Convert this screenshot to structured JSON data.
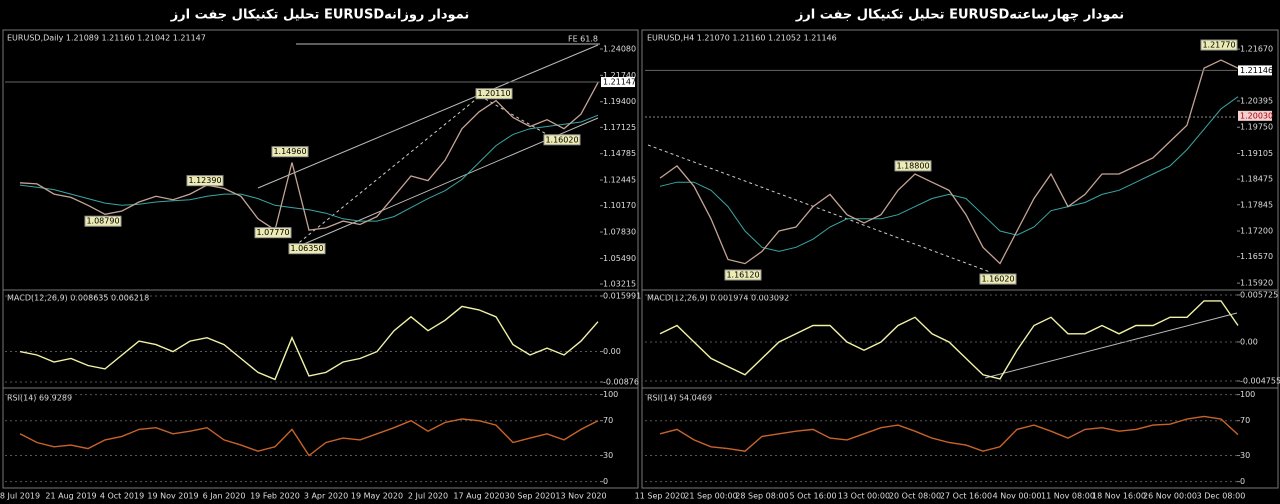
{
  "chart_data": [
    {
      "type": "line",
      "title": "تحلیل تکنیکال جفت ارز  EURUSDنمودار روزانه",
      "categories": [
        "8 Jul 2019",
        null,
        null,
        "21 Aug 2019",
        null,
        null,
        "4 Oct 2019",
        null,
        null,
        "19 Nov 2019",
        null,
        null,
        "6 Jan 2020",
        null,
        null,
        "19 Feb 2020",
        null,
        null,
        "3 Apr 2020",
        null,
        null,
        "19 May 2020",
        null,
        null,
        "2 Jul 2020",
        null,
        null,
        "17 Aug 2020",
        null,
        null,
        "30 Sep 2020",
        null,
        null,
        "13 Nov 2020",
        null
      ],
      "price": {
        "info": "EURUSD,Daily  1.21089 1.21160 1.21042 1.21147",
        "fe_label": "FE 61.8",
        "ylim": [
          1.0286,
          1.2559
        ],
        "yticks": [
          {
            "value": 1.2408,
            "label": "1.24080"
          },
          {
            "value": 1.2174,
            "label": "1.21740"
          },
          {
            "value": 1.194,
            "label": "1.19400"
          },
          1.17125,
          1.14785,
          1.12445,
          {
            "value": 1.1017,
            "label": "1.10170"
          },
          {
            "value": 1.0783,
            "label": "1.07830"
          },
          {
            "value": 1.0549,
            "label": "1.05490"
          },
          1.03215
        ],
        "current": 1.21147,
        "levels": [],
        "color": "#c4a494",
        "values": [
          1.122,
          1.121,
          1.112,
          1.109,
          1.102,
          1.094,
          1.097,
          1.105,
          1.11,
          1.107,
          1.112,
          1.12,
          1.117,
          1.11,
          1.09,
          1.08,
          1.14,
          1.08,
          1.082,
          1.088,
          1.085,
          1.092,
          1.11,
          1.128,
          1.124,
          1.142,
          1.17,
          1.185,
          1.195,
          1.18,
          1.172,
          1.178,
          1.17,
          1.183,
          1.211
        ],
        "ma": {
          "color": "#3aa6a6",
          "values": [
            1.12,
            1.118,
            1.116,
            1.112,
            1.108,
            1.104,
            1.102,
            1.103,
            1.105,
            1.106,
            1.107,
            1.11,
            1.112,
            1.112,
            1.108,
            1.102,
            1.1,
            1.098,
            1.095,
            1.09,
            1.088,
            1.088,
            1.092,
            1.1,
            1.108,
            1.115,
            1.125,
            1.14,
            1.155,
            1.165,
            1.17,
            1.172,
            1.174,
            1.176,
            1.182
          ]
        },
        "annotations": [
          {
            "value": 1.2011,
            "label": "1.20110"
          },
          {
            "value": 1.1496,
            "label": "1.14960"
          },
          {
            "value": 1.1239,
            "label": "1.12390"
          },
          {
            "value": 1.0879,
            "label": "1.08790"
          },
          {
            "value": 1.0777,
            "label": "1.07770"
          },
          {
            "value": 1.0635,
            "label": "1.06350"
          },
          {
            "value": 1.1602,
            "label": "1.16020"
          }
        ]
      },
      "macd": {
        "info": "MACD(12,26,9) 0.008635 0.006218",
        "ylim": [
          -0.00991,
          0.01714
        ],
        "yticks": [
          0.015991,
          {
            "value": 0,
            "label": "0.00"
          },
          -0.00876
        ],
        "grid": true,
        "color": "#f2f2a6",
        "values": [
          0,
          -0.001,
          -0.003,
          -0.002,
          -0.004,
          -0.005,
          -0.001,
          0.003,
          0.002,
          0,
          0.003,
          0.004,
          0.002,
          -0.002,
          -0.006,
          -0.008,
          0.004,
          -0.007,
          -0.006,
          -0.003,
          -0.002,
          0,
          0.006,
          0.01,
          0.006,
          0.009,
          0.013,
          0.012,
          0.01,
          0.002,
          -0.001,
          0.001,
          -0.001,
          0.003,
          0.0086
        ]
      },
      "rsi": {
        "info": "RSI(14) 69.9289",
        "ylim": [
          -5,
          103
        ],
        "yticks": [
          100,
          70,
          30,
          0
        ],
        "grid": true,
        "color": "#c8642a",
        "values": [
          55,
          45,
          40,
          42,
          38,
          48,
          52,
          60,
          62,
          55,
          58,
          62,
          48,
          42,
          35,
          40,
          60,
          30,
          45,
          50,
          48,
          55,
          62,
          70,
          58,
          68,
          72,
          70,
          65,
          45,
          50,
          55,
          48,
          60,
          70
        ]
      }
    },
    {
      "type": "line",
      "title": "تحلیل تکنیکال جفت ارز  EURUSDنمودار چهارساعته",
      "categories": [
        "11 Sep 2020",
        null,
        null,
        "21 Sep 00:00",
        null,
        null,
        "28 Sep 08:00",
        null,
        null,
        "5 Oct 16:00",
        null,
        null,
        "13 Oct 00:00",
        null,
        null,
        "20 Oct 08:00",
        null,
        null,
        "27 Oct 16:00",
        null,
        null,
        "4 Nov 00:00",
        null,
        null,
        "11 Nov 08:00",
        null,
        null,
        "18 Nov 16:00",
        null,
        null,
        "26 Nov 00:00",
        null,
        null,
        "3 Dec 08:00",
        null
      ],
      "price": {
        "info": "EURUSD,H4  1.21070 1.21160 1.21052 1.21146",
        "fe_label": null,
        "ylim": [
          1.158,
          1.2209
        ],
        "yticks": [
          {
            "value": 1.2167,
            "label": "1.21670"
          },
          1.20395,
          {
            "value": 1.1975,
            "label": "1.19750"
          },
          1.19105,
          1.18475,
          1.17845,
          {
            "value": 1.172,
            "label": "1.17200"
          },
          {
            "value": 1.1657,
            "label": "1.16570"
          },
          {
            "value": 1.1592,
            "label": "1.15920"
          }
        ],
        "current": 1.21146,
        "levels": [
          {
            "value": 1.2003,
            "label": "1.20030"
          }
        ],
        "color": "#c4a494",
        "values": [
          1.185,
          1.188,
          1.183,
          1.175,
          1.165,
          1.164,
          1.167,
          1.172,
          1.173,
          1.178,
          1.181,
          1.176,
          1.174,
          1.176,
          1.182,
          1.186,
          1.184,
          1.182,
          1.176,
          1.168,
          1.164,
          1.172,
          1.18,
          1.186,
          1.178,
          1.181,
          1.186,
          1.186,
          1.188,
          1.19,
          1.194,
          1.198,
          1.212,
          1.214,
          1.212
        ],
        "ma": {
          "color": "#3aa6a6",
          "values": [
            1.183,
            1.184,
            1.184,
            1.182,
            1.178,
            1.172,
            1.168,
            1.167,
            1.168,
            1.17,
            1.173,
            1.175,
            1.175,
            1.175,
            1.176,
            1.178,
            1.18,
            1.181,
            1.18,
            1.176,
            1.172,
            1.171,
            1.173,
            1.177,
            1.178,
            1.179,
            1.181,
            1.182,
            1.184,
            1.186,
            1.188,
            1.192,
            1.197,
            1.202,
            1.205
          ]
        },
        "annotations": [
          {
            "value": 1.2177,
            "label": "1.21770"
          },
          {
            "value": 1.188,
            "label": "1.18800"
          },
          {
            "value": 1.1612,
            "label": "1.16120"
          },
          {
            "value": 1.1602,
            "label": "1.16020"
          }
        ]
      },
      "macd": {
        "info": "MACD(12,26,9) 0.001974 0.003092",
        "ylim": [
          -0.00537,
          0.00609
        ],
        "yticks": [
          0.005725,
          {
            "value": 0,
            "label": "0.00"
          },
          -0.004755
        ],
        "grid": true,
        "color": "#f2f2a6",
        "values": [
          0.001,
          0.002,
          0,
          -0.002,
          -0.003,
          -0.004,
          -0.002,
          0,
          0.001,
          0.002,
          0.002,
          0,
          -0.001,
          0,
          0.002,
          0.003,
          0.001,
          0,
          -0.002,
          -0.004,
          -0.0045,
          -0.001,
          0.002,
          0.003,
          0.001,
          0.001,
          0.002,
          0.001,
          0.002,
          0.002,
          0.003,
          0.003,
          0.005,
          0.005,
          0.002
        ]
      },
      "rsi": {
        "info": "RSI(14) 54.0469",
        "ylim": [
          -5,
          103
        ],
        "yticks": [
          100,
          70,
          30,
          0
        ],
        "grid": true,
        "color": "#c8642a",
        "values": [
          55,
          60,
          48,
          40,
          38,
          35,
          52,
          55,
          58,
          60,
          50,
          48,
          55,
          62,
          65,
          58,
          50,
          45,
          42,
          35,
          40,
          60,
          65,
          58,
          50,
          60,
          62,
          58,
          60,
          65,
          66,
          72,
          75,
          72,
          54
        ]
      }
    }
  ]
}
